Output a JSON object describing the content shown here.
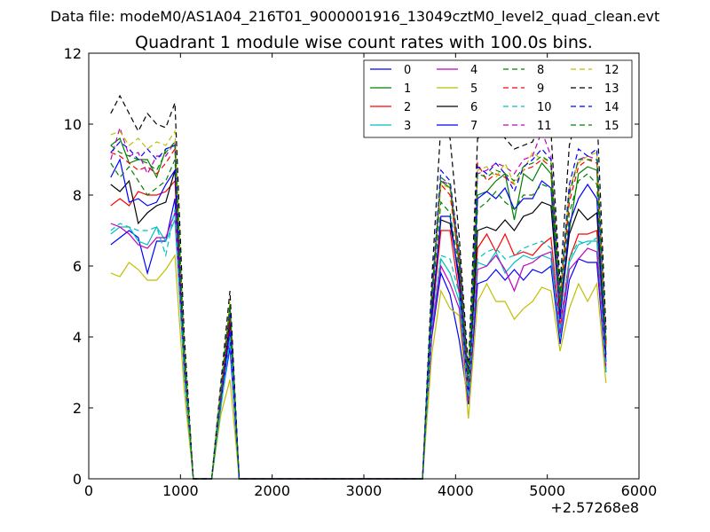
{
  "suptitle": "Data file: modeM0/AS1A04_216T01_9000001916_13049cztM0_level2_quad_clean.evt",
  "chart_data": {
    "type": "line",
    "title": "Quadrant 1 module wise count rates with 100.0s bins.",
    "xlabel": "",
    "ylabel": "",
    "x_offset_label": "+2.57268e8",
    "xlim": [
      0,
      6000
    ],
    "ylim": [
      0,
      12
    ],
    "xticks": [
      0,
      1000,
      2000,
      3000,
      4000,
      5000,
      6000
    ],
    "yticks": [
      0,
      2,
      4,
      6,
      8,
      10,
      12
    ],
    "legend_position": "top-right",
    "x": [
      240,
      340,
      440,
      540,
      640,
      740,
      840,
      940,
      1040,
      1140,
      1240,
      1340,
      1440,
      1540,
      1640,
      1740,
      1840,
      1940,
      2040,
      2140,
      2240,
      2340,
      2440,
      2540,
      2640,
      2740,
      2840,
      2940,
      3040,
      3140,
      3240,
      3340,
      3440,
      3540,
      3640,
      3740,
      3840,
      3940,
      4040,
      4140,
      4240,
      4340,
      4440,
      4540,
      4640,
      4740,
      4840,
      4940,
      5040,
      5140,
      5240,
      5340,
      5440,
      5540,
      5640
    ],
    "series": [
      {
        "name": "0",
        "color": "#0000ff",
        "dash": "solid",
        "values": [
          6.6,
          6.8,
          7.0,
          6.8,
          5.8,
          6.7,
          6.7,
          7.9,
          3.0,
          0,
          0,
          0,
          2.1,
          3.7,
          0,
          0,
          0,
          0,
          0,
          0,
          0,
          0,
          0,
          0,
          0,
          0,
          0,
          0,
          0,
          0,
          0,
          0,
          0,
          0,
          0,
          4.0,
          5.8,
          5.2,
          3.9,
          2.1,
          5.5,
          5.6,
          5.9,
          5.6,
          5.9,
          5.6,
          5.9,
          5.8,
          6.0,
          3.8,
          5.6,
          6.2,
          6.1,
          6.1,
          3.0
        ]
      },
      {
        "name": "1",
        "color": "#008000",
        "dash": "solid",
        "values": [
          9.4,
          9.6,
          8.9,
          9.0,
          9.0,
          8.5,
          9.3,
          9.4,
          3.5,
          0,
          0,
          0,
          2.5,
          4.9,
          0,
          0,
          0,
          0,
          0,
          0,
          0,
          0,
          0,
          0,
          0,
          0,
          0,
          0,
          0,
          0,
          0,
          0,
          0,
          0,
          0,
          5.0,
          8.4,
          8.2,
          6.0,
          2.7,
          8.0,
          8.1,
          8.4,
          8.6,
          7.3,
          8.6,
          8.4,
          8.9,
          8.6,
          4.9,
          7.0,
          8.6,
          8.8,
          8.7,
          3.8
        ]
      },
      {
        "name": "2",
        "color": "#ff0000",
        "dash": "solid",
        "values": [
          7.7,
          7.9,
          7.7,
          8.1,
          8.0,
          8.0,
          8.1,
          8.4,
          3.3,
          0,
          0,
          0,
          2.0,
          4.4,
          0,
          0,
          0,
          0,
          0,
          0,
          0,
          0,
          0,
          0,
          0,
          0,
          0,
          0,
          0,
          0,
          0,
          0,
          0,
          0,
          0,
          4.4,
          7.0,
          7.0,
          5.2,
          2.3,
          6.5,
          6.9,
          6.4,
          6.9,
          6.3,
          6.4,
          6.3,
          6.6,
          6.8,
          4.3,
          6.2,
          6.9,
          6.9,
          7.0,
          3.2
        ]
      },
      {
        "name": "3",
        "color": "#00bfbf",
        "dash": "solid",
        "values": [
          6.9,
          7.1,
          7.1,
          6.7,
          6.6,
          7.1,
          6.7,
          7.3,
          3.0,
          0,
          0,
          0,
          2.0,
          3.9,
          0,
          0,
          0,
          0,
          0,
          0,
          0,
          0,
          0,
          0,
          0,
          0,
          0,
          0,
          0,
          0,
          0,
          0,
          0,
          0,
          0,
          4.2,
          6.2,
          5.8,
          5.0,
          2.2,
          6.1,
          6.0,
          6.4,
          5.8,
          6.1,
          6.3,
          6.2,
          6.3,
          6.2,
          4.0,
          6.1,
          6.6,
          6.7,
          6.7,
          3.0
        ]
      },
      {
        "name": "4",
        "color": "#bf00bf",
        "dash": "solid",
        "values": [
          7.2,
          7.1,
          6.9,
          6.6,
          6.5,
          6.8,
          6.8,
          7.5,
          3.1,
          0,
          0,
          0,
          2.2,
          4.0,
          0,
          0,
          0,
          0,
          0,
          0,
          0,
          0,
          0,
          0,
          0,
          0,
          0,
          0,
          0,
          0,
          0,
          0,
          0,
          0,
          0,
          4.1,
          6.0,
          5.5,
          4.8,
          2.2,
          5.9,
          6.0,
          6.3,
          5.9,
          5.3,
          6.0,
          6.1,
          6.3,
          6.4,
          4.1,
          5.9,
          6.2,
          6.5,
          6.4,
          3.1
        ]
      },
      {
        "name": "5",
        "color": "#bfbf00",
        "dash": "solid",
        "values": [
          5.8,
          5.7,
          6.1,
          5.9,
          5.6,
          5.6,
          5.9,
          6.3,
          2.5,
          0,
          0,
          0,
          1.8,
          2.8,
          0,
          0,
          0,
          0,
          0,
          0,
          0,
          0,
          0,
          0,
          0,
          0,
          0,
          0,
          0,
          0,
          0,
          0,
          0,
          0,
          0,
          3.5,
          5.3,
          4.8,
          4.6,
          1.7,
          5.0,
          5.5,
          5.0,
          5.0,
          4.5,
          4.8,
          5.0,
          5.4,
          5.3,
          3.6,
          4.8,
          5.5,
          5.0,
          5.5,
          2.7
        ]
      },
      {
        "name": "6",
        "color": "#000000",
        "dash": "solid",
        "values": [
          8.3,
          8.1,
          8.4,
          7.2,
          7.5,
          7.7,
          7.8,
          8.7,
          3.4,
          0,
          0,
          0,
          2.3,
          4.5,
          0,
          0,
          0,
          0,
          0,
          0,
          0,
          0,
          0,
          0,
          0,
          0,
          0,
          0,
          0,
          0,
          0,
          0,
          0,
          0,
          0,
          4.7,
          7.3,
          7.2,
          5.7,
          2.4,
          7.0,
          7.1,
          7.0,
          7.3,
          7.0,
          7.4,
          7.5,
          7.8,
          7.7,
          4.6,
          6.9,
          7.6,
          7.3,
          7.5,
          3.5
        ]
      },
      {
        "name": "7",
        "color": "#0000ff",
        "dash": "solid",
        "values": [
          8.5,
          9.0,
          7.8,
          7.9,
          7.7,
          7.8,
          8.3,
          8.7,
          3.4,
          0,
          0,
          0,
          2.2,
          4.2,
          0,
          0,
          0,
          0,
          0,
          0,
          0,
          0,
          0,
          0,
          0,
          0,
          0,
          0,
          0,
          0,
          0,
          0,
          0,
          0,
          0,
          4.5,
          7.4,
          7.4,
          5.5,
          2.4,
          7.9,
          8.1,
          7.9,
          8.2,
          7.6,
          7.9,
          7.9,
          8.4,
          8.2,
          4.5,
          7.2,
          7.9,
          8.3,
          7.9,
          3.3
        ]
      },
      {
        "name": "8",
        "color": "#008000",
        "dash": "dashed",
        "values": [
          8.9,
          8.5,
          8.8,
          8.4,
          8.0,
          8.2,
          8.4,
          9.0,
          3.5,
          0,
          0,
          0,
          2.4,
          4.7,
          0,
          0,
          0,
          0,
          0,
          0,
          0,
          0,
          0,
          0,
          0,
          0,
          0,
          0,
          0,
          0,
          0,
          0,
          0,
          0,
          0,
          5.0,
          7.8,
          7.5,
          5.9,
          2.6,
          7.6,
          7.8,
          8.1,
          7.8,
          7.6,
          8.0,
          8.0,
          8.3,
          8.2,
          4.8,
          7.5,
          8.4,
          8.6,
          8.3,
          3.7
        ]
      },
      {
        "name": "9",
        "color": "#ff0000",
        "dash": "dashed",
        "values": [
          9.2,
          9.1,
          8.9,
          8.7,
          8.8,
          8.6,
          8.9,
          9.3,
          3.6,
          0,
          0,
          0,
          2.3,
          4.6,
          0,
          0,
          0,
          0,
          0,
          0,
          0,
          0,
          0,
          0,
          0,
          0,
          0,
          0,
          0,
          0,
          0,
          0,
          0,
          0,
          0,
          5.1,
          8.3,
          8.0,
          6.1,
          2.7,
          8.9,
          8.4,
          8.6,
          8.5,
          8.3,
          8.7,
          8.8,
          9.0,
          8.8,
          5.0,
          7.8,
          8.8,
          9.0,
          8.9,
          3.8
        ]
      },
      {
        "name": "10",
        "color": "#00bfbf",
        "dash": "dashed",
        "values": [
          7.0,
          7.2,
          7.1,
          7.0,
          7.0,
          7.1,
          6.3,
          7.6,
          3.0,
          0,
          0,
          0,
          2.0,
          4.0,
          0,
          0,
          0,
          0,
          0,
          0,
          0,
          0,
          0,
          0,
          0,
          0,
          0,
          0,
          0,
          0,
          0,
          0,
          0,
          0,
          0,
          4.3,
          6.3,
          6.2,
          5.2,
          2.3,
          6.2,
          6.4,
          6.5,
          6.2,
          6.3,
          6.5,
          6.6,
          6.7,
          6.5,
          4.2,
          6.2,
          6.7,
          6.6,
          6.8,
          3.1
        ]
      },
      {
        "name": "11",
        "color": "#bf00bf",
        "dash": "dashed",
        "values": [
          9.0,
          9.9,
          9.1,
          9.2,
          8.6,
          9.1,
          9.1,
          9.5,
          3.7,
          0,
          0,
          0,
          2.4,
          4.9,
          0,
          0,
          0,
          0,
          0,
          0,
          0,
          0,
          0,
          0,
          0,
          0,
          0,
          0,
          0,
          0,
          0,
          0,
          0,
          0,
          0,
          5.2,
          8.4,
          8.3,
          6.3,
          2.8,
          8.6,
          8.7,
          8.9,
          8.8,
          8.6,
          9.0,
          9.1,
          9.8,
          9.1,
          5.1,
          8.1,
          9.0,
          9.1,
          9.0,
          3.9
        ]
      },
      {
        "name": "12",
        "color": "#bfbf00",
        "dash": "dashed",
        "values": [
          9.7,
          9.8,
          9.4,
          9.6,
          9.3,
          9.5,
          9.4,
          9.8,
          3.8,
          0,
          0,
          0,
          2.5,
          5.0,
          0,
          0,
          0,
          0,
          0,
          0,
          0,
          0,
          0,
          0,
          0,
          0,
          0,
          0,
          0,
          0,
          0,
          0,
          0,
          0,
          0,
          5.3,
          8.3,
          8.2,
          6.4,
          2.9,
          8.7,
          8.8,
          8.5,
          8.9,
          8.3,
          8.7,
          9.2,
          9.0,
          9.0,
          5.2,
          8.2,
          8.9,
          9.1,
          9.2,
          4.0
        ]
      },
      {
        "name": "13",
        "color": "#000000",
        "dash": "dashed",
        "values": [
          10.3,
          10.8,
          10.3,
          9.8,
          10.3,
          10.0,
          9.9,
          10.6,
          4.1,
          0,
          0,
          0,
          2.7,
          5.3,
          0,
          0,
          0,
          0,
          0,
          0,
          0,
          0,
          0,
          0,
          0,
          0,
          0,
          0,
          0,
          0,
          0,
          0,
          0,
          0,
          0,
          5.6,
          10.0,
          9.6,
          6.8,
          3.1,
          9.6,
          9.7,
          9.9,
          9.6,
          9.3,
          9.4,
          9.5,
          10.1,
          9.8,
          5.5,
          9.4,
          10.4,
          10.3,
          10.4,
          4.2
        ]
      },
      {
        "name": "14",
        "color": "#0000ff",
        "dash": "dashed",
        "values": [
          9.2,
          9.5,
          9.3,
          9.0,
          9.3,
          9.0,
          9.3,
          9.4,
          3.7,
          0,
          0,
          0,
          2.5,
          4.8,
          0,
          0,
          0,
          0,
          0,
          0,
          0,
          0,
          0,
          0,
          0,
          0,
          0,
          0,
          0,
          0,
          0,
          0,
          0,
          0,
          0,
          5.3,
          8.7,
          8.4,
          6.4,
          2.8,
          8.8,
          8.6,
          8.9,
          8.6,
          8.1,
          8.8,
          9.0,
          9.3,
          9.0,
          5.2,
          8.3,
          9.3,
          9.1,
          9.3,
          3.9
        ]
      },
      {
        "name": "15",
        "color": "#008000",
        "dash": "dashed",
        "values": [
          9.4,
          9.2,
          9.1,
          9.0,
          8.9,
          8.7,
          9.2,
          9.5,
          3.7,
          0,
          0,
          0,
          2.5,
          4.9,
          0,
          0,
          0,
          0,
          0,
          0,
          0,
          0,
          0,
          0,
          0,
          0,
          0,
          0,
          0,
          0,
          0,
          0,
          0,
          0,
          0,
          5.2,
          8.5,
          8.3,
          6.3,
          2.8,
          8.6,
          8.5,
          8.7,
          8.6,
          8.4,
          8.8,
          8.9,
          9.1,
          8.9,
          5.1,
          8.0,
          9.0,
          9.0,
          9.0,
          3.8
        ]
      }
    ]
  }
}
